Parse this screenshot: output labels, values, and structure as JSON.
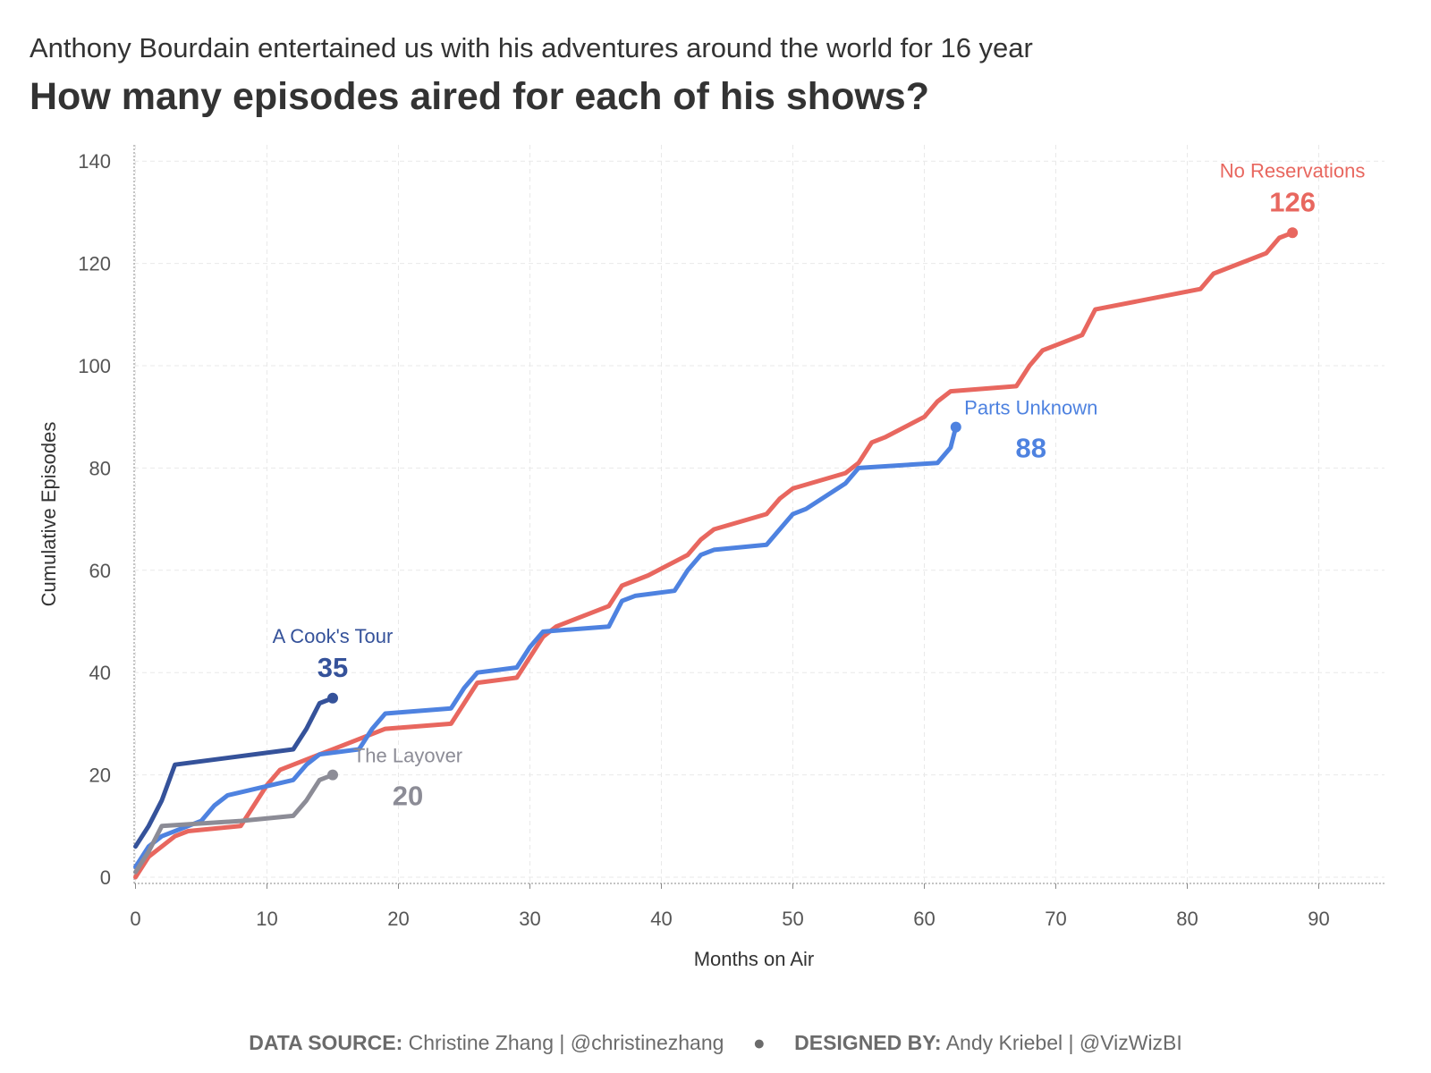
{
  "subtitle": "Anthony Bourdain entertained us with his adventures around the world for 16 year",
  "title": "How many episodes aired for each of his shows?",
  "footer": {
    "source_label": "DATA SOURCE:",
    "source_text": "Christine Zhang | @christinezhang",
    "separator": "●",
    "designer_label": "DESIGNED BY:",
    "designer_text": "Andy Kriebel | @VizWizBI"
  },
  "chart_data": {
    "type": "line",
    "xlabel": "Months on Air",
    "ylabel": "Cumulative Episodes",
    "xlim": [
      -1,
      95
    ],
    "ylim": [
      -2,
      145
    ],
    "xticks": [
      0,
      10,
      20,
      30,
      40,
      50,
      60,
      70,
      80,
      90
    ],
    "yticks": [
      0,
      20,
      40,
      60,
      80,
      100,
      120,
      140
    ],
    "grid": true,
    "series": [
      {
        "name": "No Reservations",
        "color": "#e8675f",
        "total_label": "126",
        "label_side": "above",
        "points": [
          [
            0,
            0
          ],
          [
            1,
            4
          ],
          [
            2,
            6
          ],
          [
            3,
            8
          ],
          [
            4,
            9
          ],
          [
            8,
            10
          ],
          [
            10,
            18
          ],
          [
            11,
            21
          ],
          [
            14,
            24
          ],
          [
            17,
            27
          ],
          [
            19,
            29
          ],
          [
            24,
            30
          ],
          [
            25,
            34
          ],
          [
            26,
            38
          ],
          [
            29,
            39
          ],
          [
            31,
            47
          ],
          [
            32,
            49
          ],
          [
            36,
            53
          ],
          [
            37,
            57
          ],
          [
            39,
            59
          ],
          [
            42,
            63
          ],
          [
            43,
            66
          ],
          [
            44,
            68
          ],
          [
            48,
            71
          ],
          [
            49,
            74
          ],
          [
            50,
            76
          ],
          [
            54,
            79
          ],
          [
            55,
            81
          ],
          [
            56,
            85
          ],
          [
            57,
            86
          ],
          [
            60,
            90
          ],
          [
            61,
            93
          ],
          [
            62,
            95
          ],
          [
            67,
            96
          ],
          [
            68,
            100
          ],
          [
            69,
            103
          ],
          [
            72,
            106
          ],
          [
            73,
            111
          ],
          [
            81,
            115
          ],
          [
            82,
            118
          ],
          [
            86,
            122
          ],
          [
            87,
            125
          ],
          [
            88,
            126
          ]
        ]
      },
      {
        "name": "Parts Unknown",
        "color": "#4e82e0",
        "total_label": "88",
        "label_side": "right",
        "points": [
          [
            0,
            2
          ],
          [
            1,
            6
          ],
          [
            2,
            8
          ],
          [
            5,
            11
          ],
          [
            6,
            14
          ],
          [
            7,
            16
          ],
          [
            12,
            19
          ],
          [
            13,
            22
          ],
          [
            14,
            24
          ],
          [
            17,
            25
          ],
          [
            18,
            29
          ],
          [
            19,
            32
          ],
          [
            24,
            33
          ],
          [
            25,
            37
          ],
          [
            26,
            40
          ],
          [
            29,
            41
          ],
          [
            30,
            45
          ],
          [
            31,
            48
          ],
          [
            36,
            49
          ],
          [
            37,
            54
          ],
          [
            38,
            55
          ],
          [
            41,
            56
          ],
          [
            42,
            60
          ],
          [
            43,
            63
          ],
          [
            44,
            64
          ],
          [
            48,
            65
          ],
          [
            49,
            68
          ],
          [
            50,
            71
          ],
          [
            51,
            72
          ],
          [
            54,
            77
          ],
          [
            55,
            80
          ],
          [
            61,
            81
          ],
          [
            62,
            84
          ],
          [
            62.2,
            86
          ],
          [
            62.4,
            88
          ]
        ]
      },
      {
        "name": "A Cook's Tour",
        "color": "#35529a",
        "total_label": "35",
        "label_side": "above",
        "points": [
          [
            0,
            6
          ],
          [
            1,
            10
          ],
          [
            2,
            15
          ],
          [
            3,
            22
          ],
          [
            12,
            25
          ],
          [
            13,
            29
          ],
          [
            14,
            34
          ],
          [
            15,
            35
          ]
        ]
      },
      {
        "name": "The Layover",
        "color": "#8c8c96",
        "total_label": "20",
        "label_side": "right",
        "points": [
          [
            0,
            1
          ],
          [
            1,
            5
          ],
          [
            2,
            10
          ],
          [
            8,
            11
          ],
          [
            12,
            12
          ],
          [
            13,
            15
          ],
          [
            14,
            19
          ],
          [
            15,
            20
          ]
        ]
      }
    ]
  }
}
